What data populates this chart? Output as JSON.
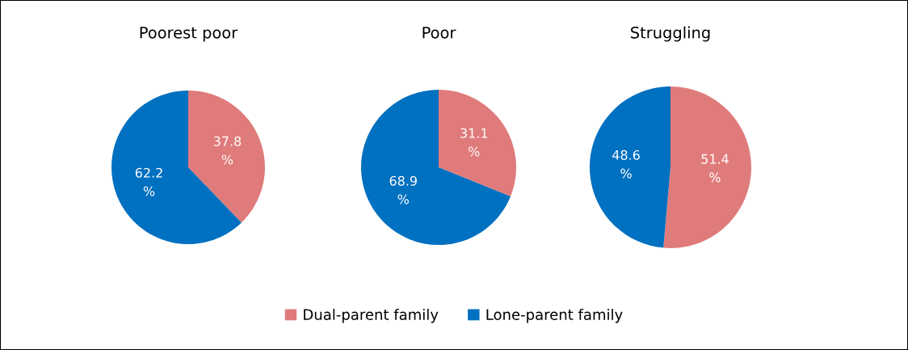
{
  "chart_data": [
    {
      "type": "pie",
      "title": "Poorest poor",
      "categories": [
        "Dual-parent family",
        "Lone-parent family"
      ],
      "values": [
        37.8,
        62.2
      ],
      "colors": [
        "#e07b7b",
        "#0070c0"
      ],
      "value_labels": [
        "37.8\n%",
        "62.2\n%"
      ],
      "legend": "bottom"
    },
    {
      "type": "pie",
      "title": "Poor",
      "categories": [
        null,
        null
      ],
      "values": [
        31.1,
        68.9
      ],
      "colors": [
        "#e07b7b",
        "#0070c0"
      ],
      "value_labels": [
        "31.1\n%",
        "68.9\n%"
      ]
    },
    {
      "type": "pie",
      "title": "Struggling",
      "categories": [
        null,
        null
      ],
      "values": [
        51.4,
        48.6
      ],
      "colors": [
        "#e07b7b",
        "#0070c0"
      ],
      "value_labels": [
        "51.4\n%",
        "48.6\n%"
      ]
    }
  ]
}
